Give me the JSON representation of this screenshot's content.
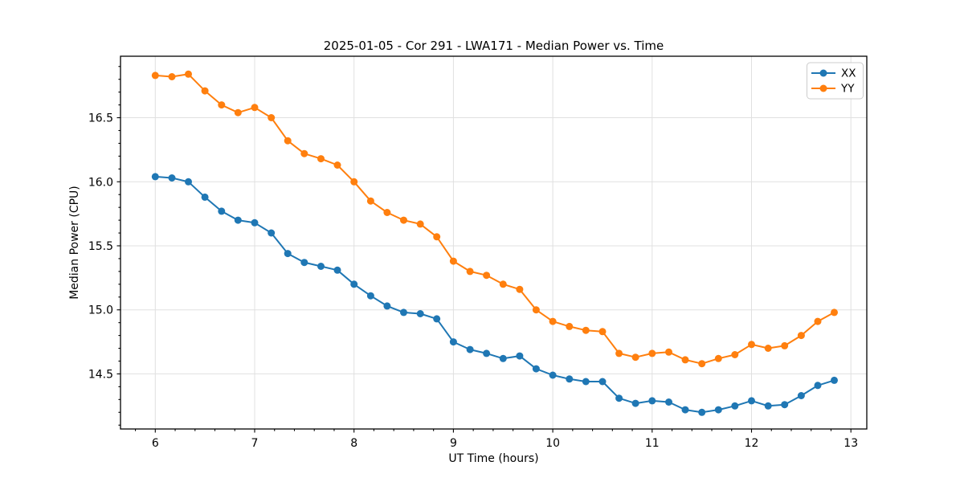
{
  "chart_data": {
    "type": "line",
    "title": "2025-01-05 - Cor 291 - LWA171 - Median Power vs. Time",
    "xlabel": "UT Time (hours)",
    "ylabel": "Median Power (CPU)",
    "xlim": [
      5.65,
      13.16
    ],
    "ylim": [
      14.07,
      16.98
    ],
    "x_ticks": [
      6,
      7,
      8,
      9,
      10,
      11,
      12,
      13
    ],
    "y_ticks": [
      14.5,
      15.0,
      15.5,
      16.0,
      16.5
    ],
    "x_minor_step": 0.2,
    "y_minor_step": 0.1,
    "grid": true,
    "legend_position": "upper right",
    "marker": "circle",
    "colors": {
      "grid": "#e0e0e0",
      "axis": "#000000",
      "series_xx": "#1f77b4",
      "series_yy": "#ff7f0e"
    },
    "x": [
      6.0,
      6.167,
      6.333,
      6.5,
      6.667,
      6.833,
      7.0,
      7.167,
      7.333,
      7.5,
      7.667,
      7.833,
      8.0,
      8.167,
      8.333,
      8.5,
      8.667,
      8.833,
      9.0,
      9.167,
      9.333,
      9.5,
      9.667,
      9.833,
      10.0,
      10.167,
      10.333,
      10.5,
      10.667,
      10.833,
      11.0,
      11.167,
      11.333,
      11.5,
      11.667,
      11.833,
      12.0,
      12.167,
      12.333,
      12.5,
      12.667,
      12.833
    ],
    "series": [
      {
        "name": "XX",
        "color": "#1f77b4",
        "values": [
          16.04,
          16.03,
          16.0,
          15.88,
          15.77,
          15.7,
          15.68,
          15.6,
          15.44,
          15.37,
          15.34,
          15.31,
          15.2,
          15.11,
          15.03,
          14.98,
          14.97,
          14.93,
          14.75,
          14.69,
          14.66,
          14.62,
          14.64,
          14.54,
          14.49,
          14.46,
          14.44,
          14.44,
          14.31,
          14.27,
          14.29,
          14.28,
          14.22,
          14.2,
          14.22,
          14.25,
          14.29,
          14.25,
          14.26,
          14.33,
          14.41,
          14.45
        ]
      },
      {
        "name": "YY",
        "color": "#ff7f0e",
        "values": [
          16.83,
          16.82,
          16.84,
          16.71,
          16.6,
          16.54,
          16.58,
          16.5,
          16.32,
          16.22,
          16.18,
          16.13,
          16.0,
          15.85,
          15.76,
          15.7,
          15.67,
          15.57,
          15.38,
          15.3,
          15.27,
          15.2,
          15.16,
          15.0,
          14.91,
          14.87,
          14.84,
          14.83,
          14.66,
          14.63,
          14.66,
          14.67,
          14.61,
          14.58,
          14.62,
          14.65,
          14.73,
          14.7,
          14.72,
          14.8,
          14.91,
          14.98
        ]
      }
    ]
  }
}
